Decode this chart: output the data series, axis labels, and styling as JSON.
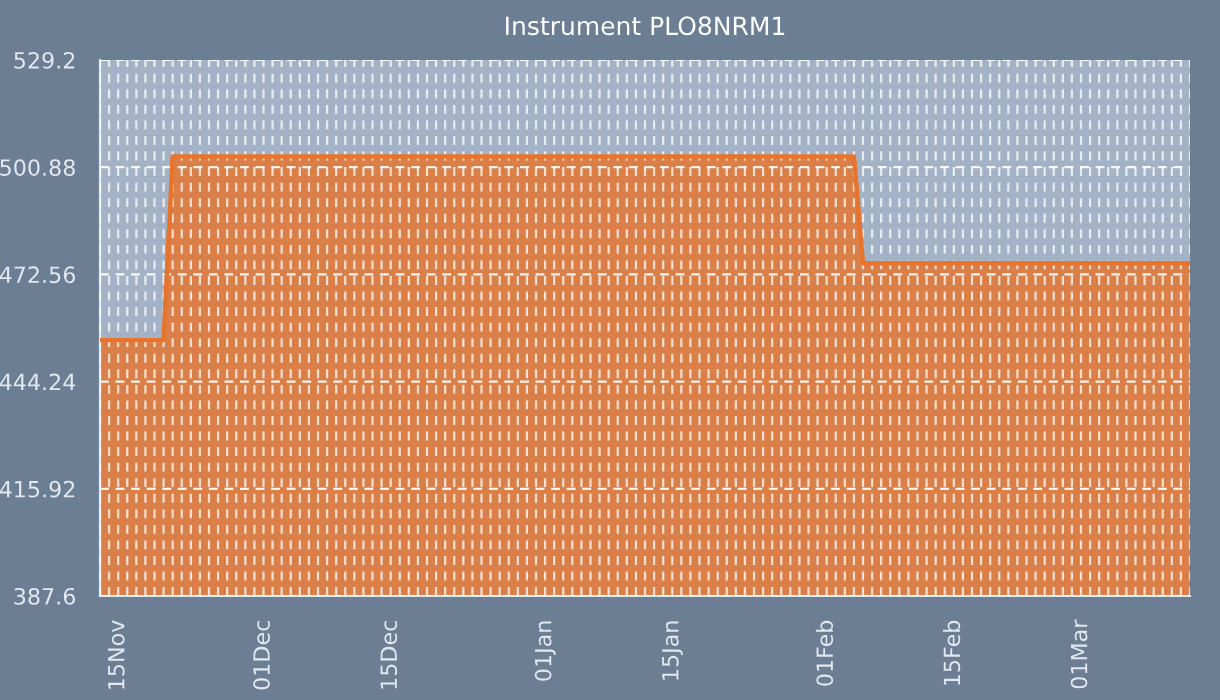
{
  "chart_data": {
    "type": "area",
    "title": "Instrument PLO8NRM1",
    "categories": [
      null,
      null,
      "15Nov",
      null,
      null,
      null,
      null,
      null,
      null,
      null,
      null,
      null,
      null,
      null,
      null,
      null,
      null,
      null,
      "01Dec",
      null,
      null,
      null,
      null,
      null,
      null,
      null,
      null,
      null,
      null,
      null,
      null,
      null,
      "15Dec",
      null,
      null,
      null,
      null,
      null,
      null,
      null,
      null,
      null,
      null,
      null,
      null,
      null,
      null,
      null,
      null,
      "01Jan",
      null,
      null,
      null,
      null,
      null,
      null,
      null,
      null,
      null,
      null,
      null,
      null,
      null,
      "15Jan",
      null,
      null,
      null,
      null,
      null,
      null,
      null,
      null,
      null,
      null,
      null,
      null,
      null,
      null,
      null,
      null,
      "01Feb",
      null,
      null,
      null,
      null,
      null,
      null,
      null,
      null,
      null,
      null,
      null,
      null,
      null,
      "15Feb",
      null,
      null,
      null,
      null,
      null,
      null,
      null,
      null,
      null,
      null,
      null,
      null,
      null,
      "01Mar",
      null,
      null,
      null,
      null,
      null,
      null,
      null,
      null,
      null,
      null,
      null,
      null
    ],
    "series": [
      {
        "color": "#e8742c",
        "values": [
          455.2,
          455.2,
          455.2,
          455.2,
          455.2,
          455.2,
          455.2,
          455.2,
          503.7,
          503.7,
          503.7,
          503.7,
          503.7,
          503.7,
          503.7,
          503.7,
          503.7,
          503.7,
          503.7,
          503.7,
          503.7,
          503.7,
          503.7,
          503.7,
          503.7,
          503.7,
          503.7,
          503.7,
          503.7,
          503.7,
          503.7,
          503.7,
          503.7,
          503.7,
          503.7,
          503.7,
          503.7,
          503.7,
          503.7,
          503.7,
          503.7,
          503.7,
          503.7,
          503.7,
          503.7,
          503.7,
          503.7,
          503.7,
          503.7,
          503.7,
          503.7,
          503.7,
          503.7,
          503.7,
          503.7,
          503.7,
          503.7,
          503.7,
          503.7,
          503.7,
          503.7,
          503.7,
          503.7,
          503.7,
          503.7,
          503.7,
          503.7,
          503.7,
          503.7,
          503.7,
          503.7,
          503.7,
          503.7,
          503.7,
          503.7,
          503.7,
          503.7,
          503.7,
          503.7,
          503.7,
          503.7,
          503.7,
          503.7,
          503.7,
          475.5,
          475.5,
          475.5,
          475.5,
          475.5,
          475.5,
          475.5,
          475.5,
          475.5,
          475.5,
          475.5,
          475.5,
          475.5,
          475.5,
          475.5,
          475.5,
          475.5,
          475.5,
          475.5,
          475.5,
          475.5,
          475.5,
          475.5,
          475.5,
          475.5,
          475.5,
          475.5,
          475.5,
          475.5,
          475.5,
          475.5,
          475.5,
          475.5,
          475.5,
          475.5,
          475.5,
          475.5
        ]
      }
    ],
    "ylim": [
      387.6,
      529.2
    ],
    "yticks": [
      387.6,
      415.92,
      444.24,
      472.56,
      500.88,
      529.2
    ],
    "grid": true
  }
}
